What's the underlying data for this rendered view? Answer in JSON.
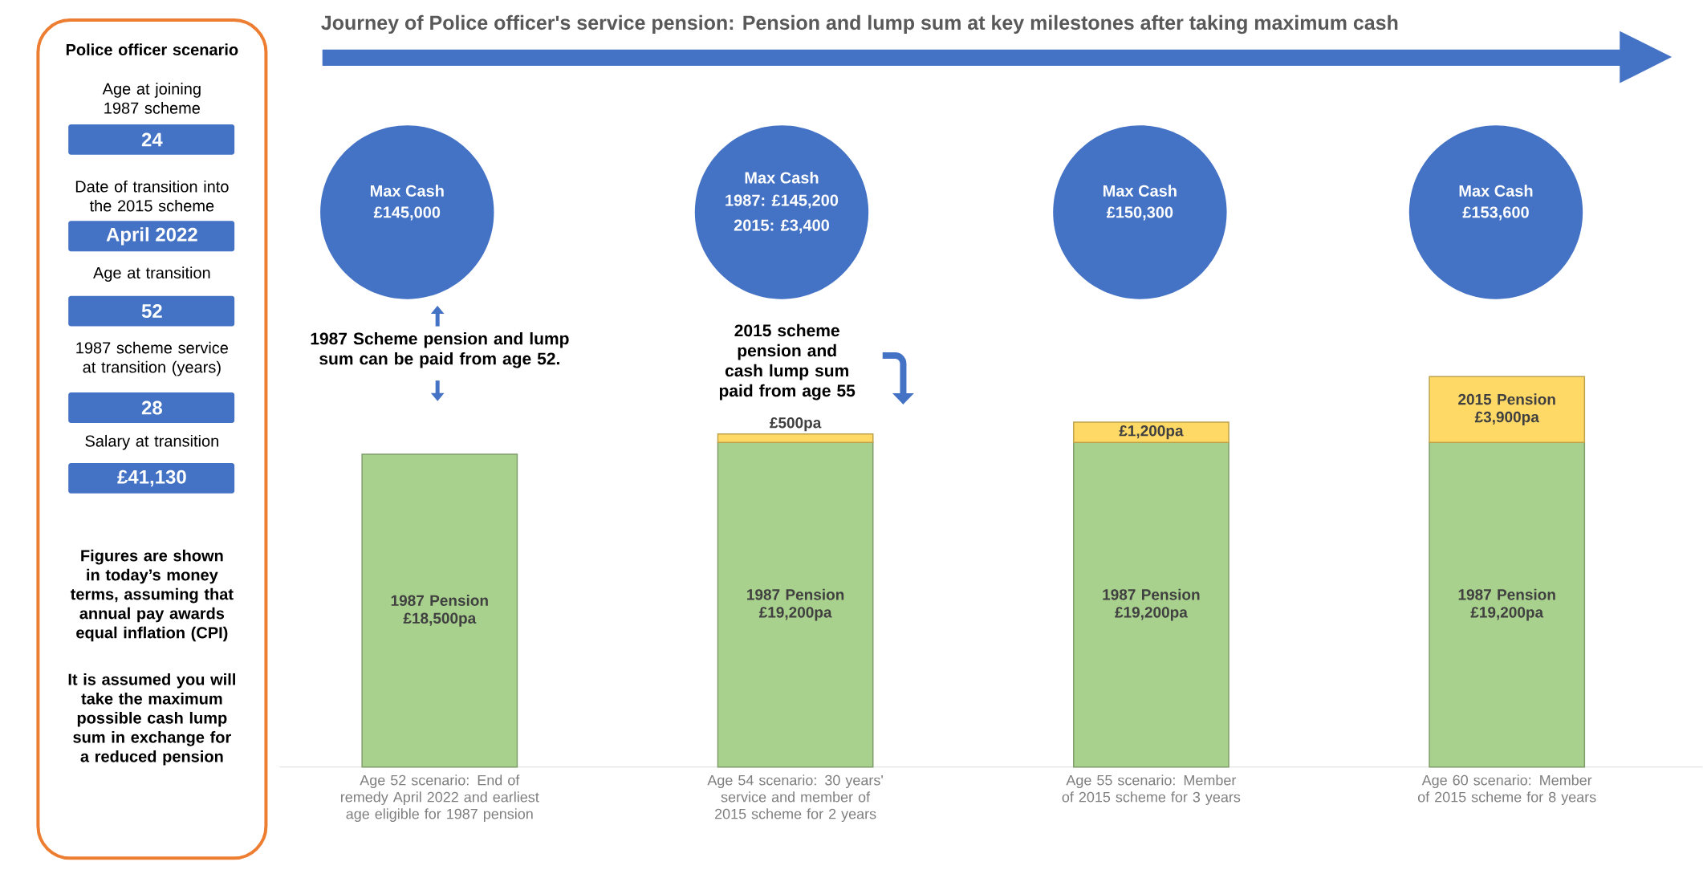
{
  "chart_data": {
    "type": "bar",
    "stacked": true,
    "title": "Journey of Police officer's service pension: Pension and lump sum at key milestones after taking maximum cash",
    "categories": [
      "Age 52 scenario: End of remedy April 2022 and earliest age eligible for 1987 pension",
      "Age 54 scenario: 30 years' service and member of 2015 scheme for 2 years",
      "Age 55 scenario: Member of 2015 scheme for 3 years",
      "Age 60 scenario: Member of 2015 scheme for 8 years"
    ],
    "series": [
      {
        "color": "#a9d18e",
        "values": [
          18500,
          19200,
          19200,
          19200
        ],
        "value_labels": [
          "1987 Pension £18,500pa",
          "1987 Pension £19,200pa",
          "1987 Pension £19,200pa",
          "1987 Pension £19,200pa"
        ]
      },
      {
        "color": "#ffd966",
        "values": [
          null,
          500,
          1200,
          3900
        ],
        "value_labels": [
          null,
          "£500pa",
          "£1,200pa",
          "2015 Pension £3,900pa"
        ]
      }
    ],
    "annotations": [
      "Police officer scenario",
      "Age at joining 1987 scheme",
      "24",
      "Date of transition into the 2015 scheme",
      "April 2022",
      "Age at transition",
      "52",
      "1987 scheme service at transition (years)",
      "28",
      "Salary at transition",
      "£41,130",
      "Figures are shown in today’s money terms, assuming that annual pay awards equal inflation (CPI)",
      "It is assumed you will take the maximum possible cash lump sum in exchange for a reduced pension",
      "Max Cash",
      "£145,000",
      "Max Cash",
      "1987: £145,200",
      "2015: £3,400",
      "Max Cash",
      "£150,300",
      "Max Cash",
      "£153,600",
      "1987 Scheme pension and lump sum can be paid from age 52.",
      "2015 scheme pension and cash lump sum paid from age 55"
    ]
  }
}
